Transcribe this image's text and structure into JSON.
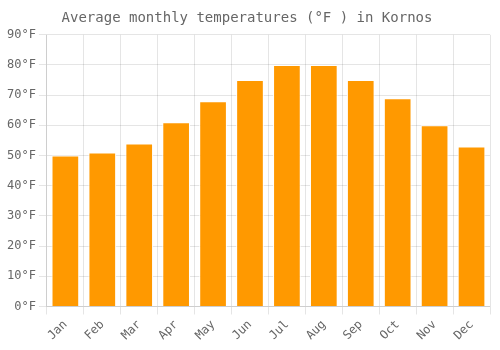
{
  "chart_data": {
    "type": "bar",
    "title": "Average monthly temperatures (°F ) in Kornos",
    "categories": [
      "Jan",
      "Feb",
      "Mar",
      "Apr",
      "May",
      "Jun",
      "Jul",
      "Aug",
      "Sep",
      "Oct",
      "Nov",
      "Dec"
    ],
    "values": [
      50,
      51,
      54,
      61,
      68,
      75,
      80,
      80,
      75,
      69,
      60,
      53
    ],
    "color": "#FF9900",
    "ylim": [
      0,
      90
    ],
    "yticks": [
      {
        "value": 0,
        "label": "0°F"
      },
      {
        "value": 10,
        "label": "10°F"
      },
      {
        "value": 20,
        "label": "20°F"
      },
      {
        "value": 30,
        "label": "30°F"
      },
      {
        "value": 40,
        "label": "40°F"
      },
      {
        "value": 50,
        "label": "50°F"
      },
      {
        "value": 60,
        "label": "60°F"
      },
      {
        "value": 70,
        "label": "70°F"
      },
      {
        "value": 80,
        "label": "80°F"
      },
      {
        "value": 90,
        "label": "90°F"
      }
    ],
    "grid": true
  }
}
